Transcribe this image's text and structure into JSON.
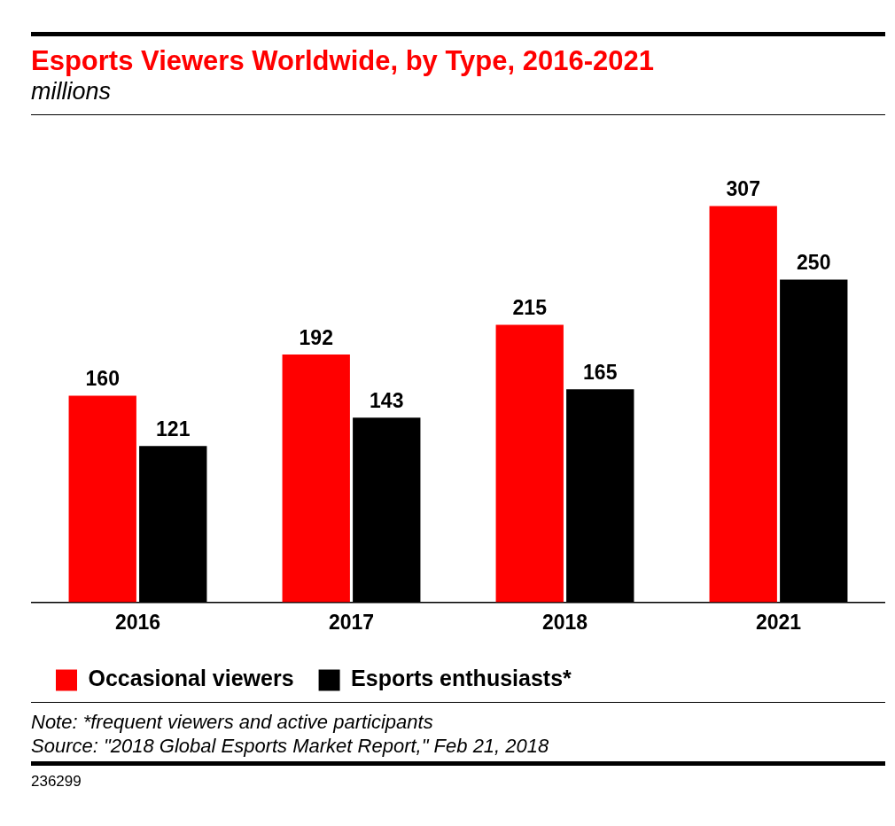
{
  "chart_data": {
    "type": "bar",
    "title": "Esports Viewers Worldwide, by Type, 2016-2021",
    "subtitle": "millions",
    "categories": [
      "2016",
      "2017",
      "2018",
      "2021"
    ],
    "series": [
      {
        "name": "Occasional viewers",
        "color": "#ff0000",
        "values": [
          160,
          192,
          215,
          307
        ]
      },
      {
        "name": "Esports enthusiasts*",
        "color": "#000000",
        "values": [
          121,
          143,
          165,
          250
        ]
      }
    ],
    "data_labels": true,
    "grid": false,
    "legend": "bottom left",
    "tick_labels": "x",
    "annotations": [
      "Note: *frequent viewers and active participants",
      "Source: \"2018 Global Esports Market Report,\" Feb 21, 2018",
      "236299"
    ]
  }
}
